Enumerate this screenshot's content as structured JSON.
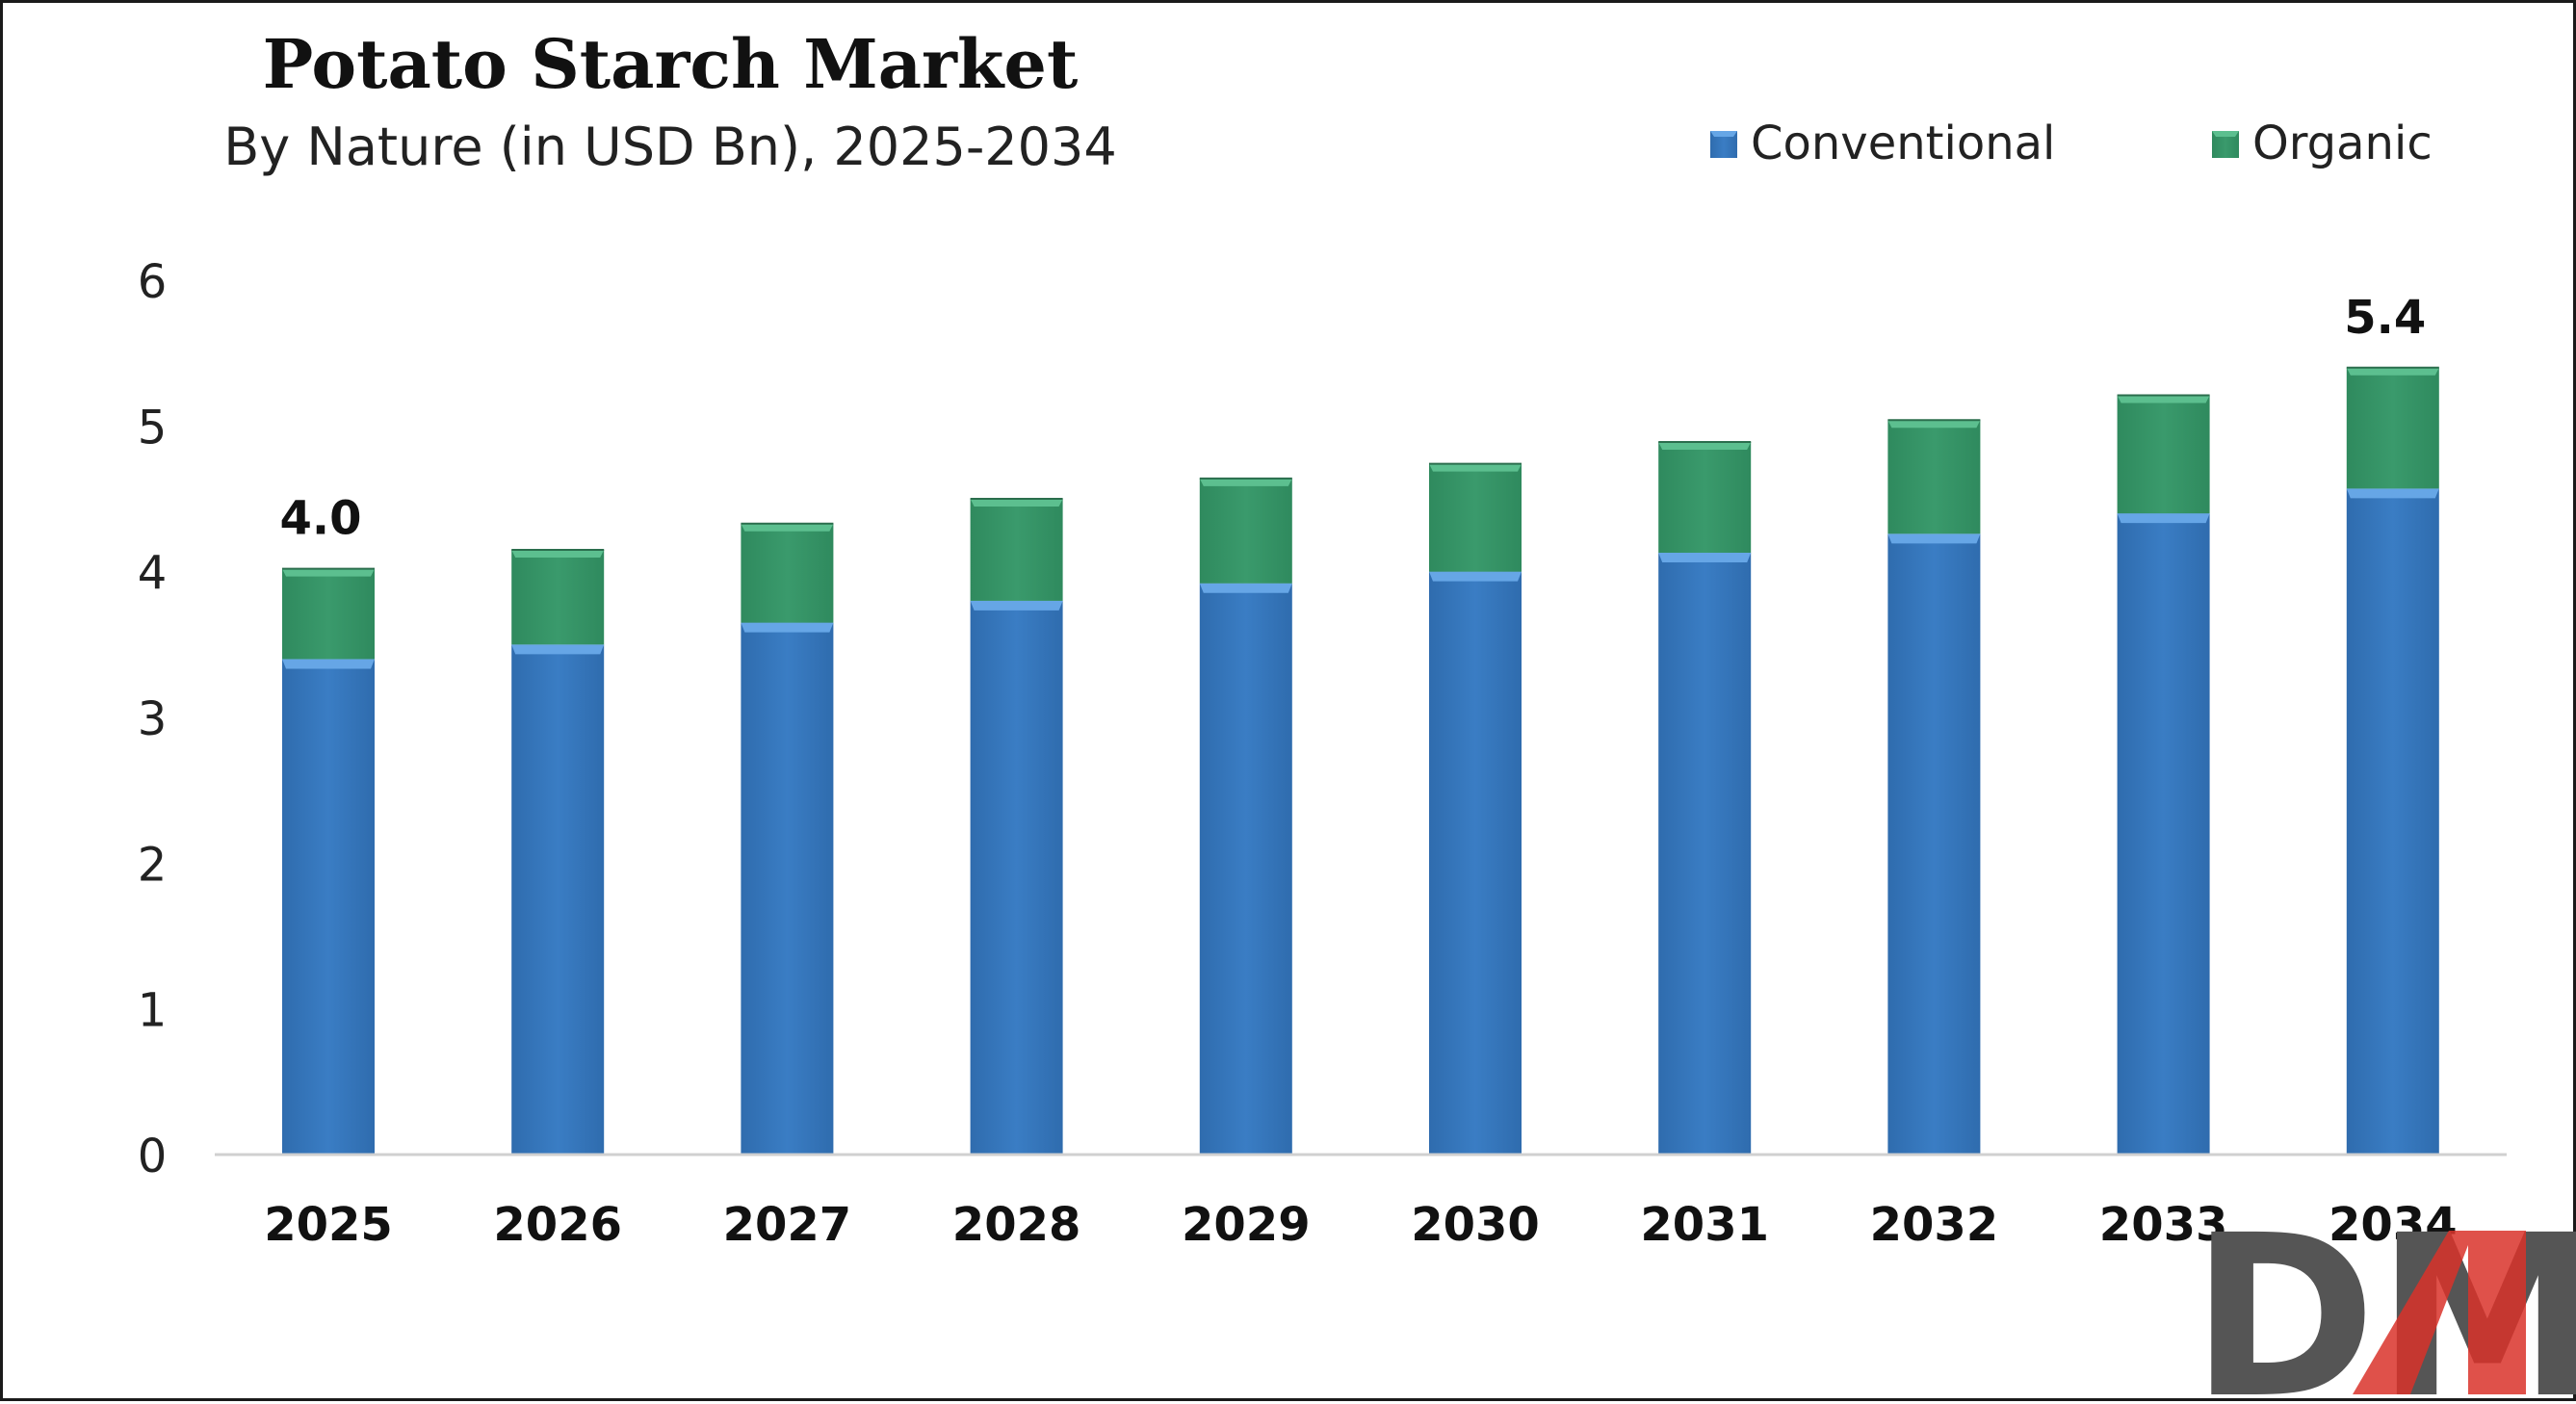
{
  "colors": {
    "conventional": "#3a7dc4",
    "conventional_top": "#66a6e6",
    "organic": "#3a9a6c",
    "organic_top": "#5cbf8f",
    "axis": "#d0d0d0",
    "text": "#222222",
    "logo_dark": "#555555",
    "logo_red": "#d9322a"
  },
  "chart_data": {
    "type": "bar",
    "stacked": true,
    "title": "Potato Starch Market",
    "subtitle": "By Nature (in USD Bn), 2025-2034",
    "categories": [
      "2025",
      "2026",
      "2027",
      "2028",
      "2029",
      "2030",
      "2031",
      "2032",
      "2033",
      "2034"
    ],
    "series": [
      {
        "name": "Conventional",
        "values": [
          3.4,
          3.5,
          3.65,
          3.8,
          3.92,
          4.0,
          4.13,
          4.26,
          4.4,
          4.57
        ]
      },
      {
        "name": "Organic",
        "values": [
          0.62,
          0.65,
          0.68,
          0.7,
          0.72,
          0.74,
          0.76,
          0.78,
          0.81,
          0.83
        ]
      }
    ],
    "ylim": [
      0,
      6
    ],
    "yticks": [
      "0",
      "1",
      "2",
      "3",
      "4",
      "5",
      "6"
    ],
    "data_labels": [
      {
        "category": "2025",
        "text": "4.0"
      },
      {
        "category": "2034",
        "text": "5.4"
      }
    ],
    "legend_position": "top-right",
    "grid": false
  },
  "logo": {
    "text": "DMR",
    "icon": "dmr-logo"
  }
}
